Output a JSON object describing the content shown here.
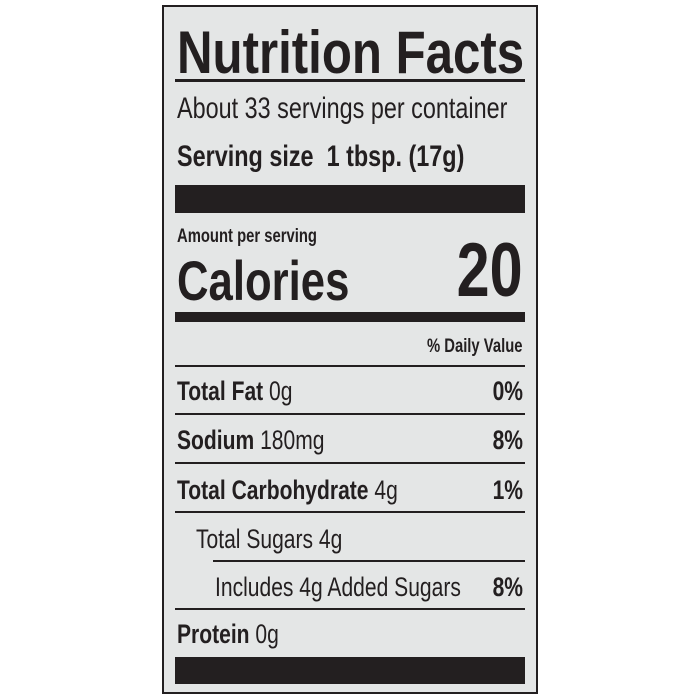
{
  "title": "Nutrition Facts",
  "servings_per_container": "About 33 servings per container",
  "serving_size": {
    "label": "Serving size",
    "value": "1 tbsp. (17g)"
  },
  "amount_per_serving": "Amount per serving",
  "calories": {
    "label": "Calories",
    "value": "20"
  },
  "daily_value_header": "% Daily Value",
  "nutrients": [
    {
      "name": "Total Fat",
      "amount": "0g",
      "dv": "0%"
    },
    {
      "name": "Sodium",
      "amount": "180mg",
      "dv": "8%"
    },
    {
      "name": "Total Carbohydrate",
      "amount": "4g",
      "dv": "1%"
    },
    {
      "name": "Total Sugars 4g",
      "amount": "",
      "dv": ""
    },
    {
      "name": "Includes 4g Added Sugars",
      "amount": "",
      "dv": "8%"
    },
    {
      "name": "Protein",
      "amount": "0g",
      "dv": ""
    }
  ],
  "colors": {
    "ink": "#231f20",
    "background": "#e4e6e6"
  }
}
